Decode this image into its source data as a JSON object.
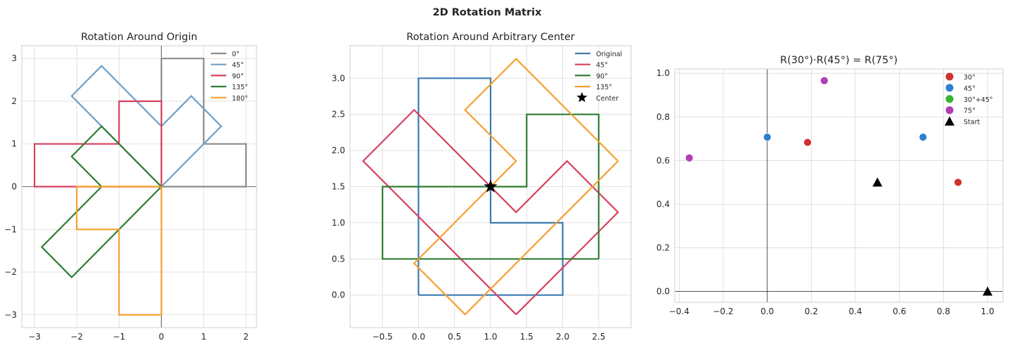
{
  "suptitle": "2D Rotation Matrix",
  "chart_data": [
    {
      "type": "line",
      "title": "Rotation Around Origin",
      "xlim": [
        -3.3,
        2.25
      ],
      "ylim": [
        -3.3,
        3.3
      ],
      "xticks": [
        -3,
        -2,
        -1,
        0,
        1,
        2
      ],
      "yticks": [
        -3,
        -2,
        -1,
        0,
        1,
        2,
        3
      ],
      "grid": true,
      "legend_position": "top-right",
      "series": [
        {
          "name": "0°",
          "color": "#8c8c8c",
          "points": [
            [
              0,
              0
            ],
            [
              2,
              0
            ],
            [
              2,
              1
            ],
            [
              1,
              1
            ],
            [
              1,
              3
            ],
            [
              0,
              3
            ],
            [
              0,
              0
            ]
          ]
        },
        {
          "name": "45°",
          "color": "#6f9ec7",
          "points": [
            [
              0,
              0
            ],
            [
              1.414,
              1.414
            ],
            [
              0.707,
              2.121
            ],
            [
              0,
              1.414
            ],
            [
              -1.414,
              2.828
            ],
            [
              -2.121,
              2.121
            ],
            [
              0,
              0
            ]
          ]
        },
        {
          "name": "90°",
          "color": "#d83f5f",
          "points": [
            [
              0,
              0
            ],
            [
              0,
              2
            ],
            [
              -1,
              2
            ],
            [
              -1,
              1
            ],
            [
              -3,
              1
            ],
            [
              -3,
              0
            ],
            [
              0,
              0
            ]
          ]
        },
        {
          "name": "135°",
          "color": "#2e7d32",
          "points": [
            [
              0,
              0
            ],
            [
              -1.414,
              1.414
            ],
            [
              -2.121,
              0.707
            ],
            [
              -1.414,
              0
            ],
            [
              -2.828,
              -1.414
            ],
            [
              -2.121,
              -2.121
            ],
            [
              0,
              0
            ]
          ]
        },
        {
          "name": "180°",
          "color": "#f59f30",
          "points": [
            [
              0,
              0
            ],
            [
              -2,
              0
            ],
            [
              -2,
              -1
            ],
            [
              -1,
              -1
            ],
            [
              -1,
              -3
            ],
            [
              0,
              -3
            ],
            [
              0,
              0
            ]
          ]
        }
      ]
    },
    {
      "type": "line",
      "title": "Rotation Around Arbitrary Center",
      "xlim": [
        -0.95,
        2.95
      ],
      "ylim": [
        -0.45,
        3.45
      ],
      "xticks": [
        -0.5,
        0.0,
        0.5,
        1.0,
        1.5,
        2.0,
        2.5
      ],
      "yticks": [
        0.0,
        0.5,
        1.0,
        1.5,
        2.0,
        2.5,
        3.0
      ],
      "grid": true,
      "legend_position": "top-right",
      "series": [
        {
          "name": "Original",
          "color": "#3b7bb0",
          "points": [
            [
              0,
              0
            ],
            [
              2,
              0
            ],
            [
              2,
              1
            ],
            [
              1,
              1
            ],
            [
              1,
              3
            ],
            [
              0,
              3
            ],
            [
              0,
              0
            ]
          ]
        },
        {
          "name": "45°",
          "color": "#d83f5f",
          "points": [
            [
              1.354,
              -0.268
            ],
            [
              2.768,
              1.146
            ],
            [
              2.061,
              1.854
            ],
            [
              1.354,
              1.146
            ],
            [
              -0.061,
              2.561
            ],
            [
              -0.768,
              1.854
            ],
            [
              1.354,
              -0.268
            ]
          ]
        },
        {
          "name": "90°",
          "color": "#2e7d32",
          "points": [
            [
              2.5,
              0.5
            ],
            [
              2.5,
              2.5
            ],
            [
              1.5,
              2.5
            ],
            [
              1.5,
              1.5
            ],
            [
              -0.5,
              1.5
            ],
            [
              -0.5,
              0.5
            ],
            [
              2.5,
              0.5
            ]
          ]
        },
        {
          "name": "135°",
          "color": "#f59f30",
          "points": [
            [
              2.768,
              1.854
            ],
            [
              1.354,
              3.268
            ],
            [
              0.646,
              2.561
            ],
            [
              1.354,
              1.854
            ],
            [
              -0.061,
              0.439
            ],
            [
              0.646,
              -0.268
            ],
            [
              2.768,
              1.854
            ]
          ]
        }
      ],
      "center": {
        "name": "Center",
        "x": 1.0,
        "y": 1.5,
        "color": "#000000"
      }
    },
    {
      "type": "scatter",
      "title": "R(30°)·R(45°) = R(75°)",
      "xlim": [
        -0.42,
        1.07
      ],
      "ylim": [
        -0.05,
        1.02
      ],
      "xticks": [
        -0.4,
        -0.2,
        0.0,
        0.2,
        0.4,
        0.6,
        0.8,
        1.0
      ],
      "yticks": [
        0.0,
        0.2,
        0.4,
        0.6,
        0.8,
        1.0
      ],
      "grid": true,
      "legend_position": "top-right",
      "series": [
        {
          "name": "30°",
          "color": "#d0312d",
          "marker": "circle",
          "points": [
            [
              0.866,
              0.5
            ],
            [
              0.183,
              0.683
            ]
          ]
        },
        {
          "name": "45°",
          "color": "#2f7fd0",
          "marker": "circle",
          "points": [
            [
              0.707,
              0.707
            ],
            [
              0.0,
              0.707
            ]
          ]
        },
        {
          "name": "30°+45°",
          "color": "#33b533",
          "marker": "circle",
          "points": []
        },
        {
          "name": "75°",
          "color": "#b23db6",
          "marker": "circle",
          "points": [
            [
              0.259,
              0.966
            ],
            [
              -0.354,
              0.612
            ]
          ]
        },
        {
          "name": "Start",
          "color": "#000000",
          "marker": "triangle",
          "points": [
            [
              1.0,
              0.0
            ],
            [
              0.5,
              0.5
            ]
          ]
        }
      ]
    }
  ]
}
